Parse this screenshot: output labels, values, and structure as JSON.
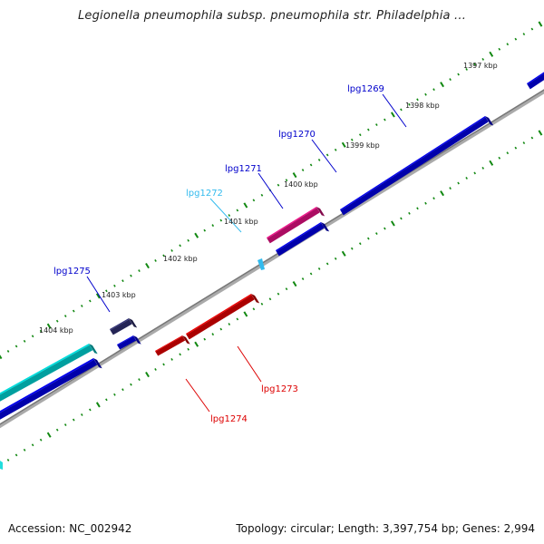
{
  "title": "Legionella pneumophila subsp. pneumophila str. Philadelphia ...",
  "footer": {
    "accession": "Accession: NC_002942",
    "topology": "Topology: circular; Length: 3,397,754 bp; Genes: 2,994"
  },
  "ticks": [
    "1397 kbp",
    "1398 kbp",
    "1399 kbp",
    "1400 kbp",
    "1401 kbp",
    "1402 kbp",
    "1403 kbp",
    "1404 kbp"
  ],
  "genes": [
    {
      "name": "lpg1269",
      "color": "#0000cc"
    },
    {
      "name": "lpg1270",
      "color": "#0000cc"
    },
    {
      "name": "lpg1271",
      "color": "#0000cc"
    },
    {
      "name": "lpg1272",
      "color": "#33bbee"
    },
    {
      "name": "lpg1273",
      "color": "#dd0000"
    },
    {
      "name": "lpg1274",
      "color": "#dd0000"
    },
    {
      "name": "lpg1275",
      "color": "#0000cc"
    }
  ],
  "colors": {
    "forward_strand": "#0000ee",
    "cds_pink": "#ee1188",
    "cds_cyan": "#00dddd",
    "cds_dark": "#333377",
    "reverse_strand": "#ee0000",
    "backbone": "#888888",
    "tick_green": "#118811"
  }
}
